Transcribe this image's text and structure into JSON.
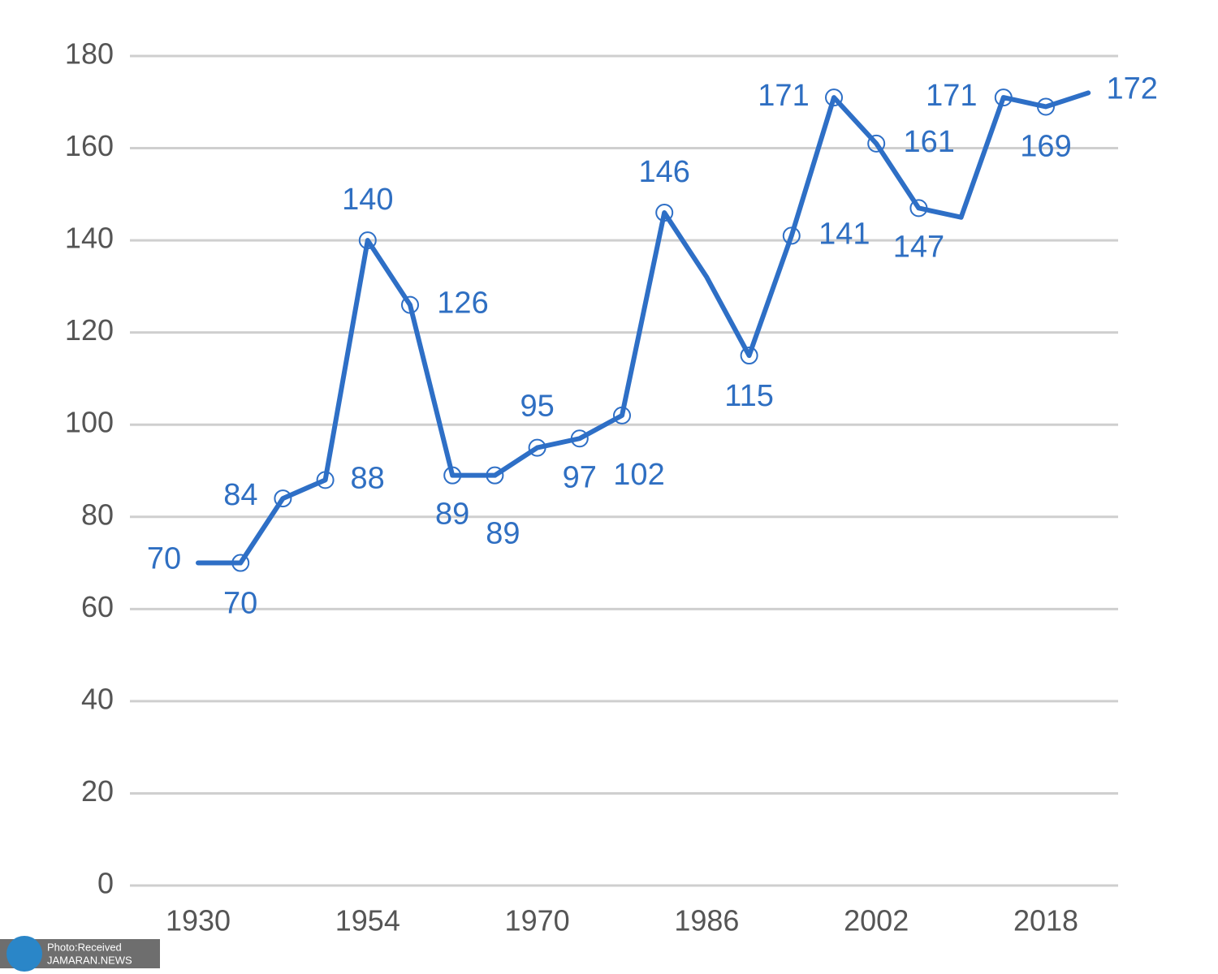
{
  "chart_data": {
    "type": "line",
    "categories": [
      "1930",
      null,
      null,
      null,
      "1954",
      null,
      null,
      null,
      "1970",
      null,
      null,
      null,
      "1986",
      null,
      null,
      null,
      "2002",
      null,
      null,
      null,
      "2018",
      null
    ],
    "series": [
      {
        "color": "#2e6fc6",
        "values": [
          70,
          70,
          84,
          88,
          140,
          126,
          89,
          89,
          95,
          97,
          102,
          146,
          132,
          115,
          141,
          171,
          161,
          147,
          145,
          171,
          169,
          172
        ],
        "value_labels": [
          "70",
          "70",
          "84",
          "88",
          "140",
          "126",
          "89",
          "89",
          "95",
          "97",
          "102",
          "146",
          null,
          "115",
          "141",
          "171",
          "161",
          "147",
          null,
          "171",
          "169",
          "172"
        ]
      }
    ],
    "ylim": [
      0,
      180
    ],
    "yticks": [
      0,
      20,
      40,
      60,
      80,
      100,
      120,
      140,
      160,
      180
    ],
    "grid": true
  },
  "watermark": [
    "Photo:Received",
    "JAMARAN.NEWS"
  ]
}
